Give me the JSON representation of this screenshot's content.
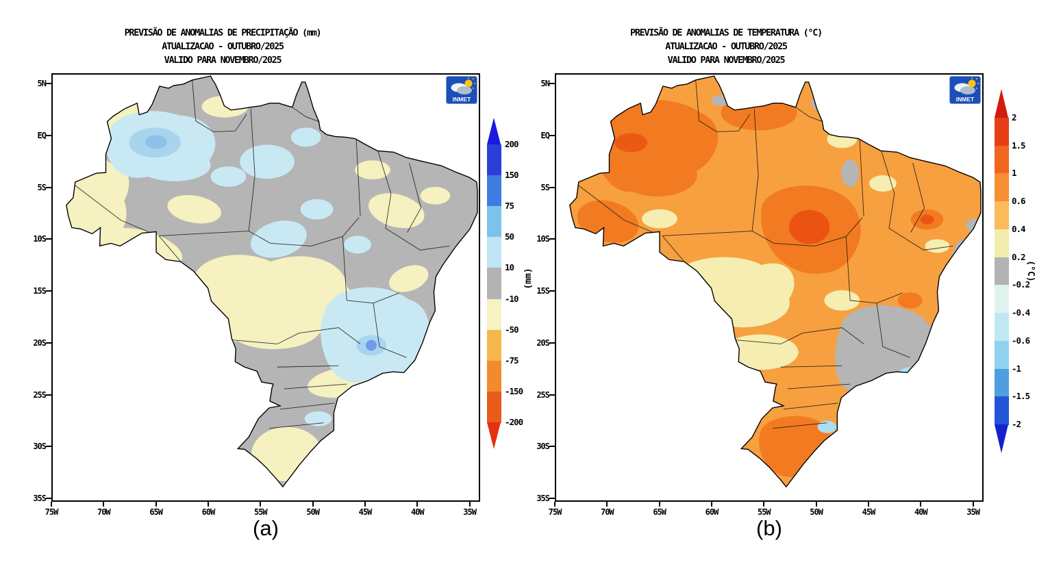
{
  "logo": {
    "label": "INMET",
    "bg_color": "#1c4eb8",
    "sun_color": "#fbc412"
  },
  "axes": {
    "lat_ticks": [
      "5N",
      "EQ",
      "5S",
      "10S",
      "15S",
      "20S",
      "25S",
      "30S",
      "35S"
    ],
    "lon_ticks": [
      "75W",
      "70W",
      "65W",
      "60W",
      "55W",
      "50W",
      "45W",
      "40W",
      "35W"
    ]
  },
  "panels": [
    {
      "caption": "(a)",
      "title_lines": [
        "PREVISÃO DE ANOMALIAS DE PRECIPITAÇÃO (mm)",
        "ATUALIZACAO - OUTUBRO/2025",
        "VALIDO PARA NOVEMBRO/2025"
      ],
      "colorbar": {
        "unit": "(mm)",
        "ticks": [
          "200",
          "150",
          "75",
          "50",
          "10",
          "-10",
          "-50",
          "-75",
          "-150",
          "-200"
        ],
        "segment_colors": [
          "#2b3fd8",
          "#3f7ce2",
          "#7cc3ec",
          "#bfe4f4",
          "#b3b3b3",
          "#f6f2c2",
          "#f6b84a",
          "#f28a2e",
          "#e95c1b"
        ],
        "arrow_top_color": "#1a1ade",
        "arrow_bottom_color": "#e23210"
      },
      "map_palette": {
        "near_zero": "#b5b5b5",
        "negative_dry": "#f5f1c0",
        "positive_wet": "#c8e9f4",
        "strong_positive_wet": "#a8d4ee",
        "wettest_spot": "#6f9ce8"
      }
    },
    {
      "caption": "(b)",
      "title_lines": [
        "PREVISÃO DE ANOMALIAS DE TEMPERATURA (°C)",
        "ATUALIZACAO - OUTUBRO/2025",
        "VALIDO PARA NOVEMBRO/2025"
      ],
      "colorbar": {
        "unit": "(°C)",
        "ticks": [
          "2",
          "1.5",
          "1",
          "0.6",
          "0.4",
          "0.2",
          "-0.2",
          "-0.4",
          "-0.6",
          "-1",
          "-1.5",
          "-2"
        ],
        "segment_colors": [
          "#e63f16",
          "#f1661f",
          "#f68e33",
          "#fbbb5c",
          "#f2ecae",
          "#b3b3b3",
          "#e0f2ee",
          "#c0e8f2",
          "#8fd2ee",
          "#4f9fe0",
          "#2356d6"
        ],
        "arrow_top_color": "#d31b0e",
        "arrow_bottom_color": "#1223cc"
      },
      "map_palette": {
        "base_positive": "#f7a040",
        "strong_positive": "#f27b21",
        "hot_spot": "#eb5313",
        "weak_positive": "#f5eeb0",
        "near_zero": "#b5b5b5",
        "negative": "#abdef2"
      }
    }
  ],
  "chart_data": [
    {
      "type": "heatmap",
      "subtype": "geographic-anomaly-map",
      "region": "Brazil",
      "title": "PREVISÃO DE ANOMALIAS DE PRECIPITAÇÃO (mm)",
      "update": "OUTUBRO/2025",
      "valid_for": "NOVEMBRO/2025",
      "unit": "mm",
      "x_ticks": [
        "75W",
        "70W",
        "65W",
        "60W",
        "55W",
        "50W",
        "45W",
        "40W",
        "35W"
      ],
      "y_ticks": [
        "5N",
        "EQ",
        "5S",
        "10S",
        "15S",
        "20S",
        "25S",
        "30S",
        "35S"
      ],
      "scale_levels": [
        200,
        150,
        75,
        50,
        10,
        -10,
        -50,
        -75,
        -150,
        -200
      ],
      "scale_colors_top_to_bottom": [
        "#1a1ade",
        "#2b3fd8",
        "#3f7ce2",
        "#7cc3ec",
        "#bfe4f4",
        "#b3b3b3",
        "#f6f2c2",
        "#f6b84a",
        "#f28a2e",
        "#e95c1b",
        "#e23210"
      ],
      "legend_position": "right",
      "summary": "Near-zero (gray) anomalies over much of northern and eastern Brazil; positive 10-50 mm (light blue) patches over northwest Amazonas, lower Amazon and central-east Brazil with small 50-75 mm cores; negative -10 to -50 mm (pale yellow) areas over the west, center-west, northeast interior and south."
    },
    {
      "type": "heatmap",
      "subtype": "geographic-anomaly-map",
      "region": "Brazil",
      "title": "PREVISÃO DE ANOMALIAS DE TEMPERATURA (°C)",
      "update": "OUTUBRO/2025",
      "valid_for": "NOVEMBRO/2025",
      "unit": "°C",
      "x_ticks": [
        "75W",
        "70W",
        "65W",
        "60W",
        "55W",
        "50W",
        "45W",
        "40W",
        "35W"
      ],
      "y_ticks": [
        "5N",
        "EQ",
        "5S",
        "10S",
        "15S",
        "20S",
        "25S",
        "30S",
        "35S"
      ],
      "scale_levels": [
        2,
        1.5,
        1,
        0.6,
        0.4,
        0.2,
        -0.2,
        -0.4,
        -0.6,
        -1,
        -1.5,
        -2
      ],
      "scale_colors_top_to_bottom": [
        "#d31b0e",
        "#e63f16",
        "#f1661f",
        "#f68e33",
        "#fbbb5c",
        "#f2ecae",
        "#b3b3b3",
        "#e0f2ee",
        "#c0e8f2",
        "#8fd2ee",
        "#4f9fe0",
        "#2356d6"
      ],
      "legend_position": "right",
      "summary": "Positive anomalies 0.4-1 °C (orange) over most of Brazil with stronger 1-1.5 °C cores over Amazonia, central Brazil and Rio Grande do Sul; near-zero (gray) areas over the southeast and parts of the northeast coast; small negative (light blue) spots near the southeast coast."
    }
  ]
}
